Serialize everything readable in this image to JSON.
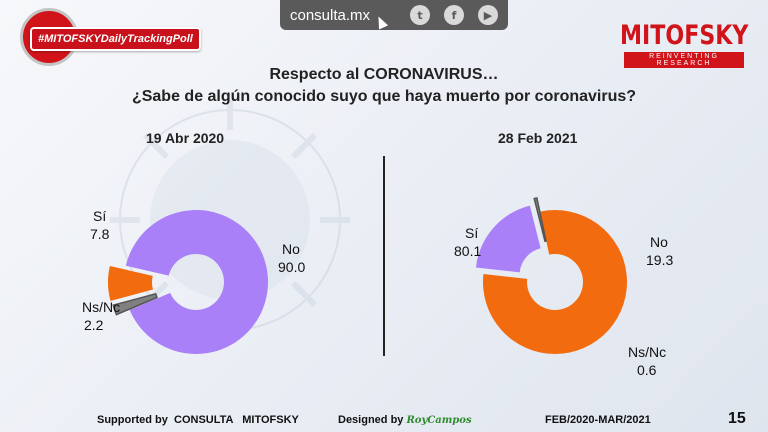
{
  "topbar": {
    "site": "consulta.mx",
    "icons": [
      "twitter-icon",
      "facebook-icon",
      "youtube-icon"
    ]
  },
  "hashtag": "#MITOFSKYDailyTrackingPoll",
  "logo": {
    "name": "MITOFSKY",
    "tagline": "REINVENTING RESEARCH"
  },
  "title": {
    "line1": "Respecto al CORONAVIRUS…",
    "line2": "¿Sabe de algún conocido suyo que haya muerto por coronavirus?"
  },
  "chart_data": [
    {
      "type": "pie",
      "title": "19 Abr 2020",
      "categories": [
        "Sí",
        "No",
        "Ns/Nc"
      ],
      "values": [
        7.8,
        90.0,
        2.2
      ],
      "labels": {
        "si": "Sí",
        "si_val": "7.8",
        "no": "No",
        "no_val": "90.0",
        "ns": "Ns/Nc",
        "ns_val": "2.2"
      }
    },
    {
      "type": "pie",
      "title": "28 Feb 2021",
      "categories": [
        "Sí",
        "No",
        "Ns/Nc"
      ],
      "values": [
        80.1,
        19.3,
        0.6
      ],
      "labels": {
        "si": "Sí",
        "si_val": "80.1",
        "no": "No",
        "no_val": "19.3",
        "ns": "Ns/Nc",
        "ns_val": "0.6"
      }
    }
  ],
  "colors": {
    "si": "#f26b0f",
    "no": "#a980f7",
    "ns": "#808080"
  },
  "footer": {
    "supported_label": "Supported by",
    "supported_name": "CONSULTA   MITOFSKY",
    "designed_label": "Designed by",
    "designer": "RoyCampos",
    "period": "FEB/2020-MAR/2021",
    "page": "15"
  }
}
